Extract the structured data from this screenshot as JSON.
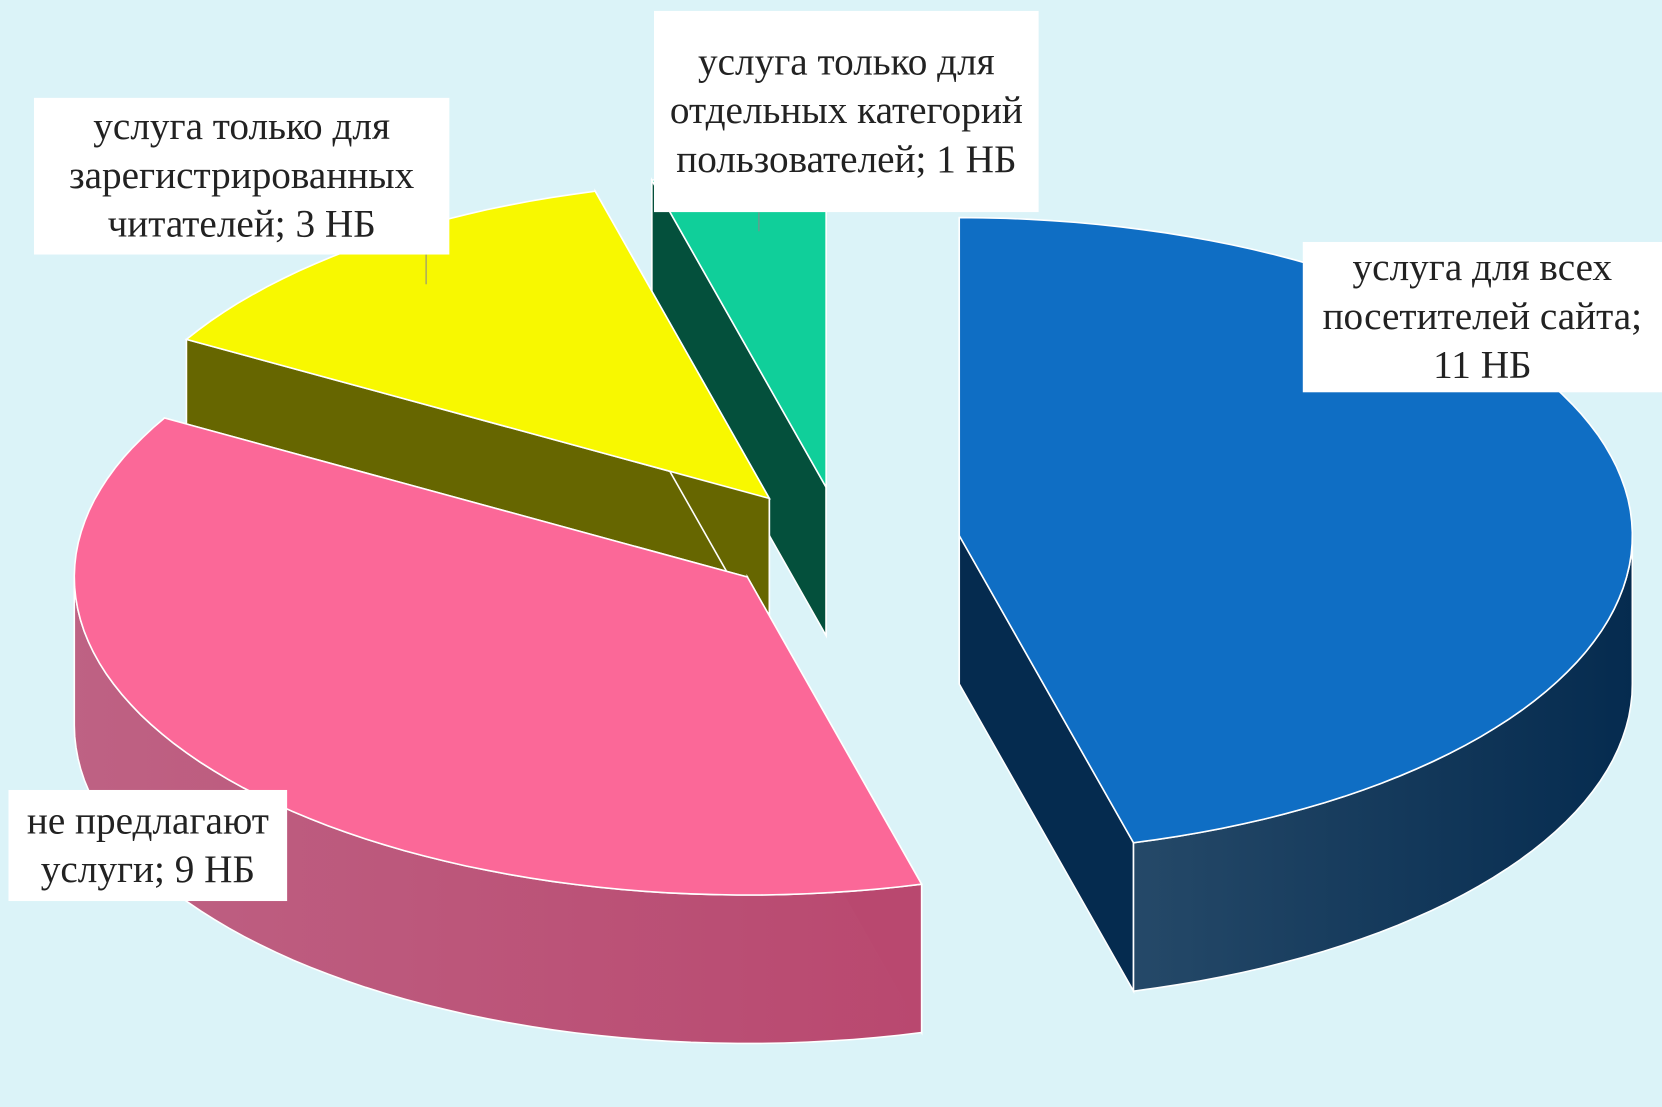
{
  "chart_data": {
    "type": "pie3d",
    "values": [
      11,
      9,
      3,
      1
    ],
    "value_labels": [
      "услуга для всех посетителей сайта; 11 НБ",
      "не предлагают услуги; 9 НБ",
      "услуга только для зарегистрированных читателей; 3 НБ",
      "услуга только для отдельных категорий пользователей; 1 НБ"
    ],
    "colors": [
      "#0f6ec4",
      "#fb6898",
      "#f8f800",
      "#10cf9a"
    ],
    "side_colors": [
      "#052b4f",
      "#b9486f",
      "#666600",
      "#04503c"
    ]
  }
}
